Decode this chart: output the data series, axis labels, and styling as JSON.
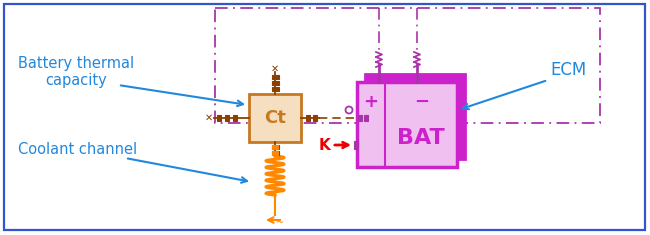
{
  "bg_color": "#ffffff",
  "border_color": "#3355cc",
  "ecm_box_color": "#aa33aa",
  "ct_box_color": "#c87820",
  "ct_box_fill": "#f5dfc0",
  "ct_text": "Ct",
  "bat_box_color": "#cc22cc",
  "bat_fill_light": "#e060e0",
  "bat_text": "BAT",
  "orange_color": "#ff8800",
  "red_color": "#ee0000",
  "brown_color": "#8b4000",
  "purple_color": "#aa33aa",
  "label_color": "#2288dd",
  "label1": "Battery thermal\ncapacity",
  "label2": "Coolant channel",
  "label3": "ECM",
  "figw": 6.5,
  "figh": 2.35
}
